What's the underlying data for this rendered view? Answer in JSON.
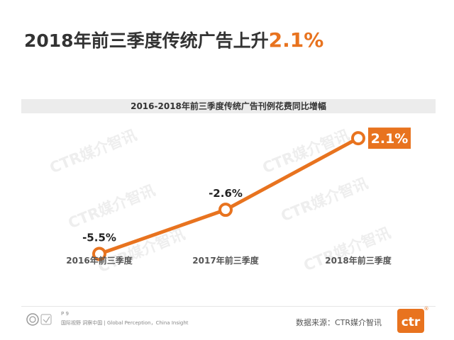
{
  "headline": {
    "text": "2018年前三季度传统广告上升",
    "value": "2.1%"
  },
  "colors": {
    "accent": "#e8731f",
    "text": "#333333",
    "band": "#ececec",
    "watermark": "#eeeeee"
  },
  "watermark_text": "CTR媒介智讯",
  "footer": {
    "page": "P 9",
    "tagline": "国际视野 洞察中国 | Global Perception，China Insight",
    "source": "数据来源：CTR媒介智讯",
    "logo_text": "ctr",
    "logo_mark": "®"
  },
  "chart_data": {
    "type": "line",
    "title": "2016-2018年前三季度传统广告刊例花费同比增幅",
    "categories": [
      "2016年前三季度",
      "2017年前三季度",
      "2018年前三季度"
    ],
    "values": [
      -5.5,
      -2.6,
      2.1
    ],
    "data_labels": [
      "-5.5%",
      "-2.6%",
      "2.1%"
    ],
    "ylim": [
      -6.5,
      3.5
    ],
    "grid": false,
    "legend": "none",
    "line_color": "#e8731f",
    "highlight_last_label": true
  }
}
